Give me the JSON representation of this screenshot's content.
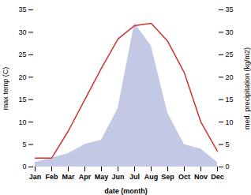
{
  "chart_data": {
    "type": "line",
    "categories": [
      "Jan",
      "Feb",
      "Mar",
      "Apr",
      "May",
      "Jun",
      "Jul",
      "Aug",
      "Sep",
      "Oct",
      "Nov",
      "Dec"
    ],
    "xlabel": "date (month)",
    "ylabel": "max temp (C)",
    "y2label": "med. precipitation (kg/m2)",
    "series": [
      {
        "type": "area",
        "axis": "y2",
        "color": "#b8c0e0",
        "values": [
          1,
          2,
          3,
          5,
          6,
          13,
          32,
          27,
          12,
          5,
          4,
          1
        ]
      },
      {
        "type": "line",
        "color": "#cc3333",
        "values": [
          2,
          2,
          8,
          15,
          22,
          28.5,
          31.5,
          32,
          28,
          21,
          10,
          3.5
        ]
      }
    ],
    "ylim": [
      0,
      35
    ],
    "yticks": [
      0,
      5,
      10,
      15,
      20,
      25,
      30,
      35
    ],
    "y2lim": [
      0,
      35
    ],
    "y2ticks": [
      0,
      5,
      10,
      15,
      20,
      25,
      30,
      35
    ],
    "grid": false
  }
}
